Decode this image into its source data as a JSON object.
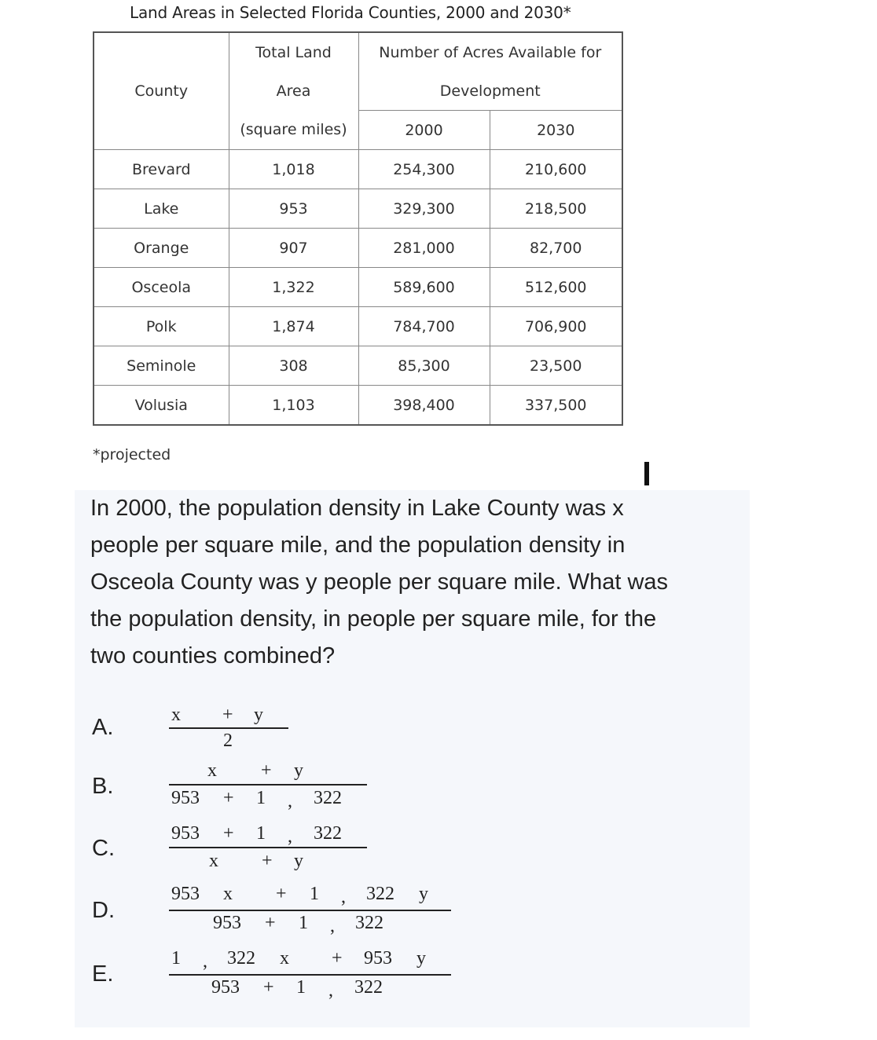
{
  "table": {
    "title": "Land Areas in Selected Florida Counties, 2000 and 2030*",
    "headers": {
      "county": "County",
      "total_land_line1": "Total Land",
      "total_land_line2": "Area",
      "total_land_line3": "(square miles)",
      "acres_line1": "Number of Acres Available for",
      "acres_line2": "Development",
      "year_2000": "2000",
      "year_2030": "2030"
    },
    "rows": [
      {
        "county": "Brevard",
        "area": "1,018",
        "acres_2000": "254,300",
        "acres_2030": "210,600"
      },
      {
        "county": "Lake",
        "area": "953",
        "acres_2000": "329,300",
        "acres_2030": "218,500"
      },
      {
        "county": "Orange",
        "area": "907",
        "acres_2000": "281,000",
        "acres_2030": "82,700"
      },
      {
        "county": "Osceola",
        "area": "1,322",
        "acres_2000": "589,600",
        "acres_2030": "512,600"
      },
      {
        "county": "Polk",
        "area": "1,874",
        "acres_2000": "784,700",
        "acres_2030": "706,900"
      },
      {
        "county": "Seminole",
        "area": "308",
        "acres_2000": "85,300",
        "acres_2030": "23,500"
      },
      {
        "county": "Volusia",
        "area": "1,103",
        "acres_2000": "398,400",
        "acres_2030": "337,500"
      }
    ],
    "footnote": "*projected"
  },
  "question": {
    "line1": "In 2000, the population density in Lake County was x",
    "line2": "people per square mile, and the population density in",
    "line3": "Osceola County was y people per square mile. What was",
    "line4": "the population density, in people per square mile, for the",
    "line5": "two counties combined?"
  },
  "options": {
    "A": {
      "letter": "A.",
      "num": [
        "x",
        "+",
        "y"
      ],
      "den": [
        "2"
      ]
    },
    "B": {
      "letter": "B.",
      "num": [
        "x",
        "+",
        "y"
      ],
      "den": [
        "953",
        "+",
        "1",
        ",",
        "322"
      ]
    },
    "C": {
      "letter": "C.",
      "num": [
        "953",
        "+",
        "1",
        ",",
        "322"
      ],
      "den": [
        "x",
        "+",
        "y"
      ]
    },
    "D": {
      "letter": "D.",
      "num": [
        "953",
        "x",
        "+",
        "1",
        ",",
        "322",
        "y"
      ],
      "den": [
        "953",
        "+",
        "1",
        ",",
        "322"
      ]
    },
    "E": {
      "letter": "E.",
      "num": [
        "1",
        ",",
        "322",
        "x",
        "+",
        "953",
        "y"
      ],
      "den": [
        "953",
        "+",
        "1",
        ",",
        "322"
      ]
    }
  }
}
